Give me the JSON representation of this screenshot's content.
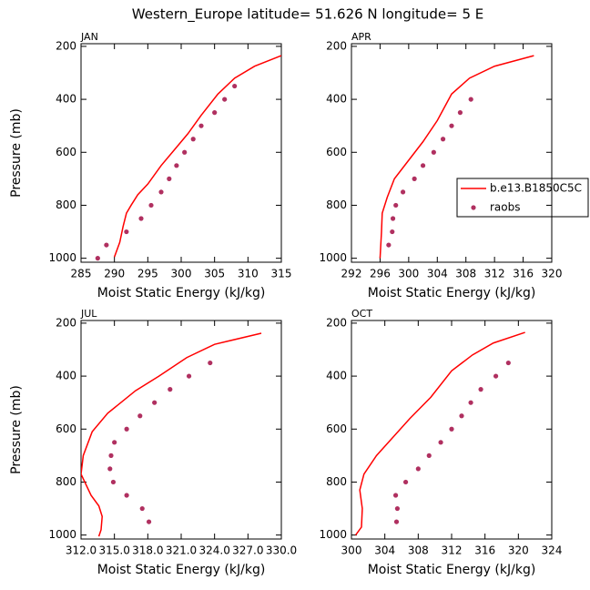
{
  "title": "Western_Europe  latitude= 51.626 N longitude= 5 E",
  "chart_data": [
    {
      "type": "line",
      "title": "JAN",
      "xlabel": "Moist Static Energy (kJ/kg)",
      "ylabel": "Pressure (mb)",
      "xlim": [
        285,
        315
      ],
      "xticks": [
        285,
        290,
        295,
        300,
        305,
        310,
        315
      ],
      "ylim": [
        1015,
        190
      ],
      "yticks": [
        200,
        400,
        600,
        800,
        1000
      ],
      "series": [
        {
          "color": "#ff0000",
          "mode": "line",
          "x": [
            290.0,
            290.8,
            291.3,
            291.8,
            292.5,
            293.5,
            295.0,
            297.0,
            299.0,
            301.0,
            303.0,
            305.5,
            308.0,
            311.0,
            315.0
          ],
          "y": [
            995,
            940,
            880,
            830,
            800,
            760,
            720,
            650,
            590,
            530,
            460,
            380,
            320,
            275,
            235
          ]
        },
        {
          "color": "#b03060",
          "mode": "markers",
          "x": [
            287.5,
            288.8,
            291.8,
            294.0,
            295.5,
            297.0,
            298.2,
            299.3,
            300.5,
            301.8,
            303.0,
            305.0,
            306.5,
            308.0
          ],
          "y": [
            1000,
            950,
            900,
            850,
            800,
            750,
            700,
            650,
            600,
            550,
            500,
            450,
            400,
            350
          ]
        }
      ]
    },
    {
      "type": "line",
      "title": "APR",
      "xlabel": "Moist Static Energy (kJ/kg)",
      "legend": "right",
      "xlim": [
        292,
        320
      ],
      "xticks": [
        292,
        296,
        300,
        304,
        308,
        312,
        316,
        320
      ],
      "ylim": [
        1015,
        190
      ],
      "yticks": [
        200,
        400,
        600,
        800,
        1000
      ],
      "series": [
        {
          "name": "b.e13.B1850C5C",
          "color": "#ff0000",
          "mode": "line",
          "x": [
            296.0,
            296.1,
            296.2,
            296.3,
            297.0,
            298.0,
            300.0,
            302.0,
            304.0,
            306.0,
            308.5,
            312.0,
            317.5
          ],
          "y": [
            1000,
            950,
            900,
            830,
            770,
            700,
            630,
            560,
            480,
            380,
            320,
            275,
            235
          ]
        },
        {
          "name": "raobs",
          "color": "#b03060",
          "mode": "markers",
          "x": [
            297.2,
            297.7,
            297.8,
            298.2,
            299.2,
            300.8,
            302.0,
            303.5,
            304.8,
            306.0,
            307.2,
            308.7
          ],
          "y": [
            950,
            900,
            850,
            800,
            750,
            700,
            650,
            600,
            550,
            500,
            450,
            400
          ]
        }
      ]
    },
    {
      "type": "line",
      "title": "JUL",
      "xlabel": "Moist Static Energy (kJ/kg)",
      "ylabel": "Pressure (mb)",
      "xlim": [
        312,
        330
      ],
      "xticks": [
        {
          "value": 312,
          "label": "312.0"
        },
        {
          "value": 315,
          "label": "315.0"
        },
        {
          "value": 318,
          "label": "318.0"
        },
        {
          "value": 321,
          "label": "321.0"
        },
        {
          "value": 324,
          "label": "324.0"
        },
        {
          "value": 327,
          "label": "327.0"
        },
        {
          "value": 330,
          "label": "330.0"
        }
      ],
      "ylim": [
        1015,
        190
      ],
      "yticks": [
        200,
        400,
        600,
        800,
        1000
      ],
      "series": [
        {
          "color": "#ff0000",
          "mode": "line",
          "x": [
            313.6,
            313.8,
            313.9,
            313.6,
            312.9,
            312.0,
            312.2,
            313.0,
            314.4,
            316.9,
            319.0,
            321.5,
            324.0,
            328.2
          ],
          "y": [
            1005,
            980,
            930,
            890,
            850,
            770,
            700,
            610,
            540,
            455,
            400,
            330,
            280,
            238
          ]
        },
        {
          "color": "#b03060",
          "mode": "markers",
          "x": [
            318.1,
            317.5,
            316.1,
            314.9,
            314.6,
            314.7,
            315.0,
            316.1,
            317.3,
            318.6,
            320.0,
            321.7,
            323.6
          ],
          "y": [
            950,
            900,
            850,
            800,
            750,
            700,
            650,
            600,
            550,
            500,
            450,
            400,
            350
          ]
        }
      ]
    },
    {
      "type": "line",
      "title": "OCT",
      "xlabel": "Moist Static Energy (kJ/kg)",
      "xlim": [
        300,
        324
      ],
      "xticks": [
        300,
        304,
        308,
        312,
        316,
        320,
        324
      ],
      "ylim": [
        1015,
        190
      ],
      "yticks": [
        200,
        400,
        600,
        800,
        1000
      ],
      "series": [
        {
          "color": "#ff0000",
          "mode": "line",
          "x": [
            300.5,
            301.2,
            301.3,
            301.0,
            301.5,
            303.0,
            305.0,
            307.0,
            309.5,
            312.0,
            314.5,
            317.0,
            320.8
          ],
          "y": [
            1000,
            970,
            900,
            830,
            770,
            700,
            630,
            560,
            480,
            380,
            320,
            275,
            235
          ]
        },
        {
          "color": "#b03060",
          "mode": "markers",
          "x": [
            305.4,
            305.5,
            305.3,
            306.5,
            308.0,
            309.3,
            310.7,
            312.0,
            313.2,
            314.3,
            315.5,
            317.3,
            318.8
          ],
          "y": [
            950,
            900,
            850,
            800,
            750,
            700,
            650,
            600,
            550,
            500,
            450,
            400,
            350
          ]
        }
      ]
    }
  ]
}
